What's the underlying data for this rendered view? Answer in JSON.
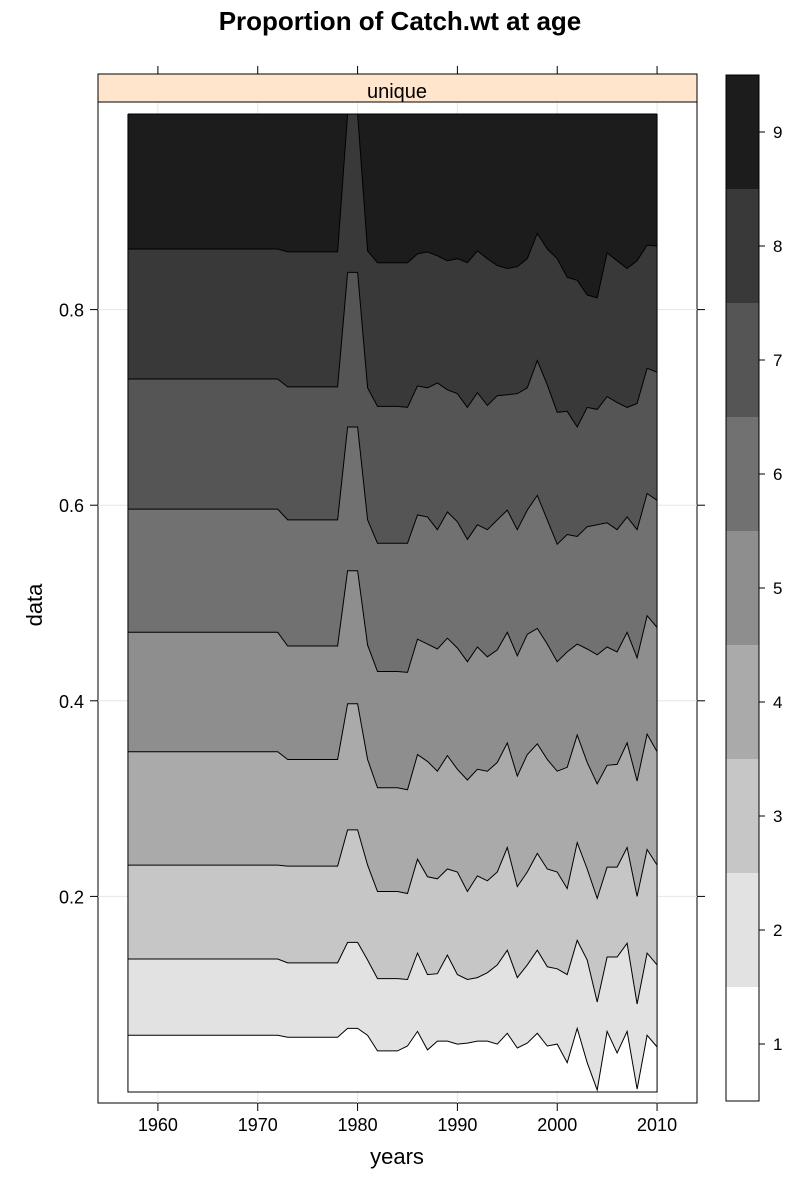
{
  "chart_data": {
    "type": "area",
    "title": "Proportion of Catch.wt at age",
    "xlabel": "years",
    "ylabel": "data",
    "strip_label": "unique",
    "xlim": [
      1954,
      2014
    ],
    "ylim": [
      0,
      1
    ],
    "x_ticks": [
      1960,
      1970,
      1980,
      1990,
      2000,
      2010
    ],
    "y_ticks": [
      0.2,
      0.4,
      0.6,
      0.8
    ],
    "grid": true,
    "legend": {
      "placement": "right",
      "levels": [
        "1",
        "2",
        "3",
        "4",
        "5",
        "6",
        "7",
        "8",
        "9"
      ],
      "colors": [
        "#ffffff",
        "#e2e2e2",
        "#c6c6c6",
        "#aaaaaa",
        "#8e8e8e",
        "#717171",
        "#555555",
        "#393939",
        "#1c1c1c"
      ]
    },
    "years": [
      1957,
      1972,
      1973,
      1978,
      1979,
      1980,
      1981,
      1982,
      1983,
      1984,
      1985,
      1986,
      1987,
      1988,
      1989,
      1990,
      1991,
      1992,
      1993,
      1994,
      1995,
      1996,
      1997,
      1998,
      1999,
      2000,
      2001,
      2002,
      2003,
      2004,
      2005,
      2006,
      2007,
      2008,
      2009,
      2010
    ],
    "cumulative_boundaries": [
      {
        "upper_age": "1",
        "values": [
          0.058,
          0.058,
          0.056,
          0.056,
          0.065,
          0.065,
          0.058,
          0.042,
          0.042,
          0.042,
          0.047,
          0.062,
          0.043,
          0.052,
          0.052,
          0.049,
          0.05,
          0.052,
          0.052,
          0.049,
          0.06,
          0.045,
          0.05,
          0.06,
          0.047,
          0.049,
          0.03,
          0.065,
          0.03,
          0.002,
          0.062,
          0.04,
          0.062,
          0.003,
          0.058,
          0.046
        ]
      },
      {
        "upper_age": "2",
        "values": [
          0.136,
          0.136,
          0.132,
          0.132,
          0.153,
          0.153,
          0.135,
          0.116,
          0.116,
          0.116,
          0.115,
          0.142,
          0.12,
          0.121,
          0.14,
          0.12,
          0.115,
          0.117,
          0.122,
          0.13,
          0.145,
          0.117,
          0.13,
          0.145,
          0.128,
          0.126,
          0.12,
          0.155,
          0.135,
          0.092,
          0.138,
          0.138,
          0.152,
          0.09,
          0.142,
          0.13
        ]
      },
      {
        "upper_age": "3",
        "values": [
          0.232,
          0.232,
          0.231,
          0.231,
          0.268,
          0.268,
          0.232,
          0.205,
          0.205,
          0.205,
          0.203,
          0.238,
          0.22,
          0.218,
          0.228,
          0.225,
          0.205,
          0.221,
          0.216,
          0.225,
          0.25,
          0.21,
          0.225,
          0.244,
          0.228,
          0.225,
          0.208,
          0.255,
          0.228,
          0.198,
          0.23,
          0.23,
          0.25,
          0.2,
          0.248,
          0.232
        ]
      },
      {
        "upper_age": "4",
        "values": [
          0.348,
          0.348,
          0.34,
          0.34,
          0.397,
          0.397,
          0.34,
          0.311,
          0.311,
          0.311,
          0.309,
          0.345,
          0.338,
          0.328,
          0.344,
          0.33,
          0.319,
          0.33,
          0.328,
          0.337,
          0.357,
          0.323,
          0.345,
          0.356,
          0.34,
          0.328,
          0.332,
          0.365,
          0.337,
          0.315,
          0.334,
          0.335,
          0.357,
          0.318,
          0.366,
          0.348
        ]
      },
      {
        "upper_age": "5",
        "values": [
          0.47,
          0.47,
          0.456,
          0.456,
          0.533,
          0.533,
          0.457,
          0.43,
          0.43,
          0.43,
          0.429,
          0.463,
          0.458,
          0.453,
          0.464,
          0.454,
          0.44,
          0.455,
          0.445,
          0.452,
          0.47,
          0.446,
          0.468,
          0.474,
          0.458,
          0.44,
          0.45,
          0.458,
          0.453,
          0.447,
          0.455,
          0.45,
          0.47,
          0.444,
          0.487,
          0.475
        ]
      },
      {
        "upper_age": "6",
        "values": [
          0.596,
          0.596,
          0.585,
          0.585,
          0.68,
          0.68,
          0.585,
          0.561,
          0.561,
          0.561,
          0.561,
          0.59,
          0.588,
          0.575,
          0.593,
          0.583,
          0.565,
          0.58,
          0.575,
          0.585,
          0.595,
          0.575,
          0.595,
          0.61,
          0.585,
          0.56,
          0.57,
          0.568,
          0.578,
          0.58,
          0.582,
          0.575,
          0.588,
          0.575,
          0.612,
          0.605
        ]
      },
      {
        "upper_age": "7",
        "values": [
          0.729,
          0.729,
          0.721,
          0.721,
          0.838,
          0.838,
          0.72,
          0.701,
          0.701,
          0.701,
          0.7,
          0.722,
          0.72,
          0.725,
          0.718,
          0.714,
          0.7,
          0.715,
          0.702,
          0.712,
          0.713,
          0.714,
          0.72,
          0.748,
          0.723,
          0.695,
          0.696,
          0.68,
          0.7,
          0.698,
          0.711,
          0.705,
          0.7,
          0.704,
          0.74,
          0.736
        ]
      },
      {
        "upper_age": "8",
        "values": [
          0.862,
          0.862,
          0.859,
          0.859,
          1.0,
          1.0,
          0.86,
          0.848,
          0.848,
          0.848,
          0.848,
          0.857,
          0.859,
          0.855,
          0.85,
          0.852,
          0.848,
          0.86,
          0.852,
          0.845,
          0.842,
          0.844,
          0.852,
          0.878,
          0.862,
          0.852,
          0.833,
          0.83,
          0.815,
          0.812,
          0.858,
          0.85,
          0.842,
          0.85,
          0.866,
          0.865
        ]
      },
      {
        "upper_age": "9",
        "values": [
          1.0,
          1.0,
          1.0,
          1.0,
          1.0,
          1.0,
          1.0,
          1.0,
          1.0,
          1.0,
          1.0,
          1.0,
          1.0,
          1.0,
          1.0,
          1.0,
          1.0,
          1.0,
          1.0,
          1.0,
          1.0,
          1.0,
          1.0,
          1.0,
          1.0,
          1.0,
          1.0,
          1.0,
          1.0,
          1.0,
          1.0,
          1.0,
          1.0,
          1.0,
          1.0,
          1.0
        ]
      }
    ]
  }
}
